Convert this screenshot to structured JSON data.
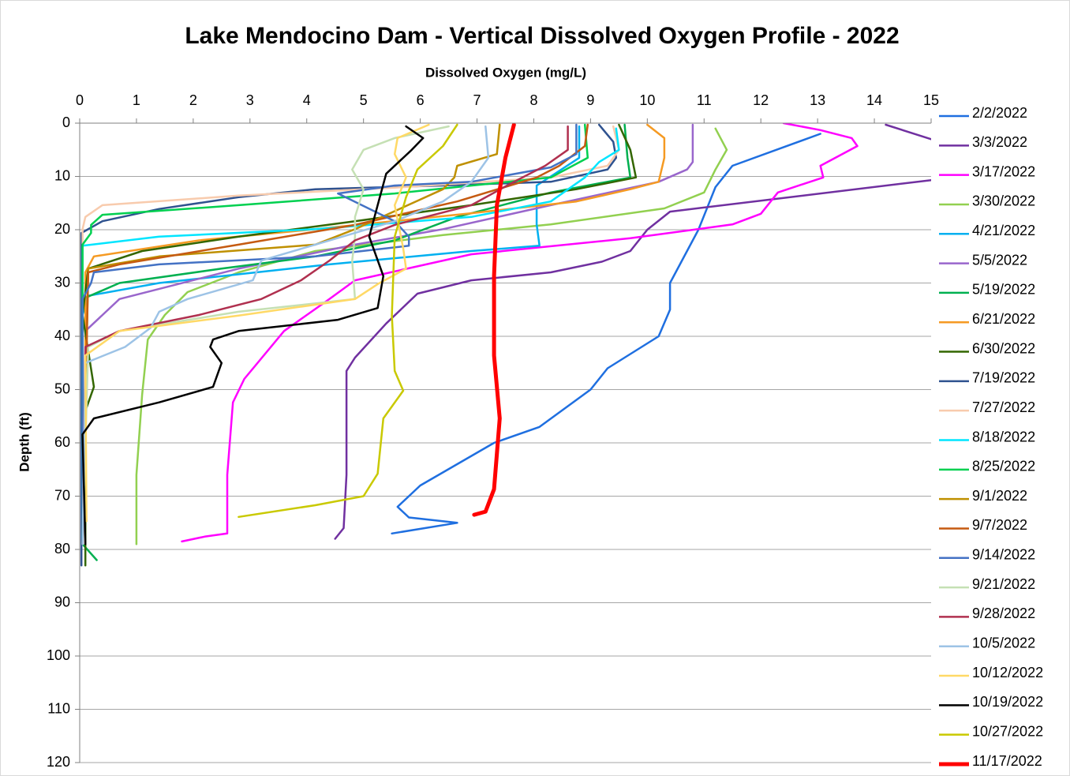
{
  "chart_data": {
    "type": "line",
    "title": "Lake Mendocino Dam - Vertical Dissolved Oxygen Profile - 2022",
    "x_label": "Dissolved Oxygen (mg/L)",
    "y_label": "Depth (ft)",
    "xlim": [
      0,
      15
    ],
    "xticks": [
      0,
      1,
      2,
      3,
      4,
      5,
      6,
      7,
      8,
      9,
      10,
      11,
      12,
      13,
      14,
      15
    ],
    "ylim": [
      0,
      120
    ],
    "yticks": [
      0,
      10,
      20,
      30,
      40,
      50,
      60,
      70,
      80,
      90,
      100,
      110,
      120
    ],
    "y_inverted": true,
    "x_axis_position": "top",
    "grid": true,
    "legend": "right",
    "series": [
      {
        "name": "2/2/2022",
        "color": "#1f6fe0",
        "line_width": 2.5,
        "x": [
          13.05,
          11.5,
          11.2,
          10.9,
          10.4,
          10.4,
          10.2,
          9.3,
          9.0,
          8.1,
          7.3,
          6.0,
          5.6,
          5.8,
          6.65,
          5.5
        ],
        "y": [
          2,
          8,
          12,
          20,
          30,
          35,
          40,
          46,
          50,
          57,
          60,
          68,
          72,
          74,
          75,
          77
        ]
      },
      {
        "name": "3/3/2022",
        "color": "#7030a0",
        "line_width": 2.5,
        "x": [
          14.2,
          15.0,
          15.6,
          15.0,
          10.4,
          10.0,
          9.7,
          9.2,
          8.3,
          6.9,
          5.95,
          5.4,
          4.85,
          4.7,
          4.7,
          4.65,
          4.5
        ],
        "y": [
          0.3,
          3,
          7,
          10.7,
          16.6,
          20,
          24,
          26,
          28,
          29.5,
          32,
          37.6,
          44,
          46.5,
          66,
          76,
          78
        ]
      },
      {
        "name": "3/17/2022",
        "color": "#ff00ff",
        "line_width": 2.5,
        "x": [
          12.4,
          13.05,
          13.6,
          13.7,
          13.05,
          13.1,
          12.3,
          12.0,
          11.5,
          9.7,
          6.9,
          4.85,
          4.4,
          3.6,
          2.9,
          2.7,
          2.6,
          2.6,
          2.2,
          1.8
        ],
        "y": [
          0,
          1.3,
          2.8,
          4.3,
          8,
          10.2,
          13,
          17,
          19,
          21.6,
          24.6,
          29.5,
          33,
          39,
          48,
          52.4,
          66,
          77,
          77.6,
          78.5
        ]
      },
      {
        "name": "3/30/2022",
        "color": "#92d050",
        "line_width": 2.5,
        "x": [
          11.2,
          11.4,
          11.2,
          11.0,
          10.3,
          8.3,
          6.4,
          4.15,
          2.8,
          1.9,
          1.5,
          1.2,
          1.1,
          1.0,
          1.0
        ],
        "y": [
          1,
          5,
          8.7,
          13,
          16,
          19,
          21,
          24,
          28,
          31.7,
          36,
          40.6,
          51,
          66,
          79
        ]
      },
      {
        "name": "4/21/2022",
        "color": "#00b0f0",
        "line_width": 2.5,
        "x": [
          8.8,
          8.8,
          8.3,
          8.05,
          8.05,
          8.1,
          6.9,
          4.4,
          1.4,
          0.15,
          0.05,
          0.05
        ],
        "y": [
          0.6,
          6.5,
          10,
          11.7,
          19,
          23,
          24,
          26.5,
          30,
          32.4,
          36,
          79
        ]
      },
      {
        "name": "5/5/2022",
        "color": "#9966cc",
        "line_width": 2.5,
        "x": [
          10.8,
          10.8,
          10.7,
          10.2,
          8.3,
          6.4,
          4.85,
          2.8,
          0.7,
          0.1,
          0.1
        ],
        "y": [
          0.3,
          7.3,
          8.7,
          11,
          15.4,
          19.9,
          22.8,
          27.3,
          33,
          39,
          79
        ]
      },
      {
        "name": "5/19/2022",
        "color": "#00b050",
        "line_width": 2.5,
        "x": [
          9.6,
          9.65,
          9.7,
          8.3,
          6.65,
          5.55,
          4.15,
          2.5,
          0.7,
          0.05,
          0.05,
          0.3
        ],
        "y": [
          0.3,
          6.5,
          10.2,
          13,
          17.6,
          22,
          25,
          27.3,
          30,
          33,
          79,
          82
        ]
      },
      {
        "name": "6/21/2022",
        "color": "#f59a23",
        "line_width": 2.5,
        "x": [
          10.0,
          10.3,
          10.3,
          10.2,
          9.7,
          8.75,
          6.9,
          4.15,
          2.1,
          0.25,
          0.1,
          0.1
        ],
        "y": [
          0.3,
          2.8,
          6.5,
          11,
          12.4,
          14.7,
          16.9,
          19.9,
          22,
          25,
          28,
          79
        ]
      },
      {
        "name": "6/30/2022",
        "color": "#336600",
        "line_width": 2.5,
        "x": [
          9.5,
          9.7,
          9.8,
          8.75,
          6.9,
          4.85,
          2.8,
          1.1,
          0.15,
          0.05,
          0.25,
          0.1,
          0.1
        ],
        "y": [
          0.3,
          5,
          10.2,
          12.4,
          15.4,
          18.4,
          21.3,
          24,
          27.3,
          36,
          49.5,
          54,
          83
        ]
      },
      {
        "name": "7/19/2022",
        "color": "#2f528f",
        "line_width": 2.5,
        "x": [
          9.15,
          9.4,
          9.45,
          9.3,
          8.3,
          6.4,
          4.15,
          2.8,
          1.4,
          0.4,
          0.03,
          0.03
        ],
        "y": [
          0.3,
          3.5,
          6.5,
          8.7,
          11,
          11.7,
          12.4,
          13.9,
          16.1,
          18.4,
          20.6,
          83
        ]
      },
      {
        "name": "7/27/2022",
        "color": "#f8cbad",
        "line_width": 2.5,
        "x": [
          9.4,
          9.5,
          9.3,
          8.3,
          5.55,
          2.8,
          0.4,
          0.1,
          0.05,
          0.05
        ],
        "y": [
          0.6,
          5,
          8,
          10.2,
          12.1,
          13.6,
          15.4,
          17.6,
          19.9,
          79
        ]
      },
      {
        "name": "8/18/2022",
        "color": "#00e5ff",
        "line_width": 2.5,
        "x": [
          9.45,
          9.5,
          9.15,
          8.9,
          8.3,
          6.9,
          4.15,
          1.4,
          0.05,
          0.05
        ],
        "y": [
          1,
          5,
          7.3,
          10.2,
          14.7,
          17.6,
          19.9,
          21.3,
          23,
          79
        ]
      },
      {
        "name": "8/25/2022",
        "color": "#00d050",
        "line_width": 2.5,
        "x": [
          8.9,
          8.95,
          8.3,
          5.55,
          2.8,
          0.4,
          0.2,
          0.2,
          0.05,
          0.05
        ],
        "y": [
          0.3,
          6.5,
          10.2,
          13.2,
          15.4,
          17.2,
          19.1,
          20.6,
          22.8,
          79
        ]
      },
      {
        "name": "9/1/2022",
        "color": "#bf9000",
        "line_width": 2.5,
        "x": [
          7.4,
          7.35,
          6.65,
          6.6,
          6.4,
          4.85,
          4.15,
          1.4,
          0.15,
          0.05
        ],
        "y": [
          0.3,
          5.8,
          8,
          10.2,
          12.4,
          19.9,
          22.8,
          25,
          27.3,
          79
        ]
      },
      {
        "name": "9/7/2022",
        "color": "#c55a11",
        "line_width": 2.5,
        "x": [
          8.95,
          8.9,
          8.45,
          8.05,
          6.65,
          4.85,
          2.8,
          0.7,
          0.15,
          0.05
        ],
        "y": [
          0.3,
          4.3,
          8,
          10.2,
          14.7,
          19.1,
          22.8,
          26.5,
          28,
          79
        ]
      },
      {
        "name": "9/14/2022",
        "color": "#4472c4",
        "line_width": 2.5,
        "x": [
          8.75,
          8.75,
          8.3,
          6.9,
          5.55,
          4.55,
          5.55,
          5.8,
          5.8,
          4.15,
          1.4,
          0.25,
          0.2,
          0.05,
          0.05
        ],
        "y": [
          0.3,
          5.8,
          8.3,
          11,
          11.7,
          13.2,
          18.4,
          21.3,
          23,
          25,
          26.5,
          28,
          30,
          33,
          79
        ]
      },
      {
        "name": "9/21/2022",
        "color": "#c5e0b4",
        "line_width": 2.5,
        "x": [
          6.5,
          5.55,
          5.0,
          4.8,
          5.0,
          4.85,
          4.85,
          4.8,
          4.85,
          2.8,
          0.7,
          0.15,
          0.05
        ],
        "y": [
          0.6,
          2.8,
          5,
          8.7,
          12.4,
          17.6,
          21.3,
          25.8,
          33,
          35.4,
          39,
          42,
          79
        ]
      },
      {
        "name": "9/28/2022",
        "color": "#b0304f",
        "line_width": 2.5,
        "x": [
          8.6,
          8.6,
          8.2,
          7.65,
          6.9,
          5.55,
          4.85,
          4.4,
          3.9,
          3.2,
          2.1,
          0.7,
          0.1,
          0.05
        ],
        "y": [
          0.6,
          5,
          8,
          11,
          15.4,
          19.1,
          22,
          25.8,
          29.5,
          33,
          36,
          39,
          42,
          79
        ]
      },
      {
        "name": "10/5/2022",
        "color": "#9dc3e6",
        "line_width": 2.5,
        "x": [
          7.15,
          7.2,
          6.9,
          6.4,
          5.55,
          4.15,
          3.2,
          3.05,
          1.9,
          1.4,
          1.25,
          0.8,
          0.1,
          0.05
        ],
        "y": [
          0.6,
          6.5,
          11,
          14.7,
          18.4,
          22.8,
          25.8,
          29.5,
          33,
          35.4,
          38.4,
          42,
          45,
          79
        ]
      },
      {
        "name": "10/12/2022",
        "color": "#ffd966",
        "line_width": 2.5,
        "x": [
          6.15,
          5.6,
          5.55,
          5.75,
          5.55,
          5.7,
          5.75,
          5.25,
          4.85,
          2.8,
          0.7,
          0.1,
          0.12
        ],
        "y": [
          0.3,
          2.8,
          5.8,
          10.2,
          15.4,
          23.5,
          27.3,
          30.2,
          33,
          36.1,
          39,
          43.6,
          74.7
        ]
      },
      {
        "name": "10/19/2022",
        "color": "#000000",
        "line_width": 2.5,
        "x": [
          5.75,
          6.05,
          5.85,
          5.4,
          5.25,
          5.1,
          5.35,
          5.25,
          4.55,
          2.8,
          2.35,
          2.3,
          2.5,
          2.35,
          1.4,
          0.25,
          0.05,
          0.1
        ],
        "y": [
          0.6,
          2.8,
          5,
          9.5,
          15.4,
          21.3,
          28.7,
          34.7,
          36.9,
          39,
          40.6,
          42,
          45,
          49.5,
          52.4,
          55.4,
          58.4,
          79
        ]
      },
      {
        "name": "10/27/2022",
        "color": "#c9c900",
        "line_width": 2.5,
        "x": [
          6.65,
          6.4,
          5.95,
          5.75,
          5.55,
          5.5,
          5.55,
          5.7,
          5.35,
          5.25,
          5.0,
          4.15,
          2.8
        ],
        "y": [
          0.3,
          4.3,
          8.7,
          13.9,
          21.3,
          36.1,
          46.5,
          50.2,
          55.4,
          65.8,
          70,
          71.7,
          73.9
        ]
      },
      {
        "name": "11/17/2022",
        "color": "#ff0000",
        "line_width": 5,
        "x": [
          7.65,
          7.5,
          7.35,
          7.3,
          7.3,
          7.4,
          7.3,
          7.15,
          6.95
        ],
        "y": [
          0.3,
          6.5,
          15.4,
          28.7,
          43.6,
          55.4,
          68.7,
          72.9,
          73.5
        ]
      }
    ]
  }
}
